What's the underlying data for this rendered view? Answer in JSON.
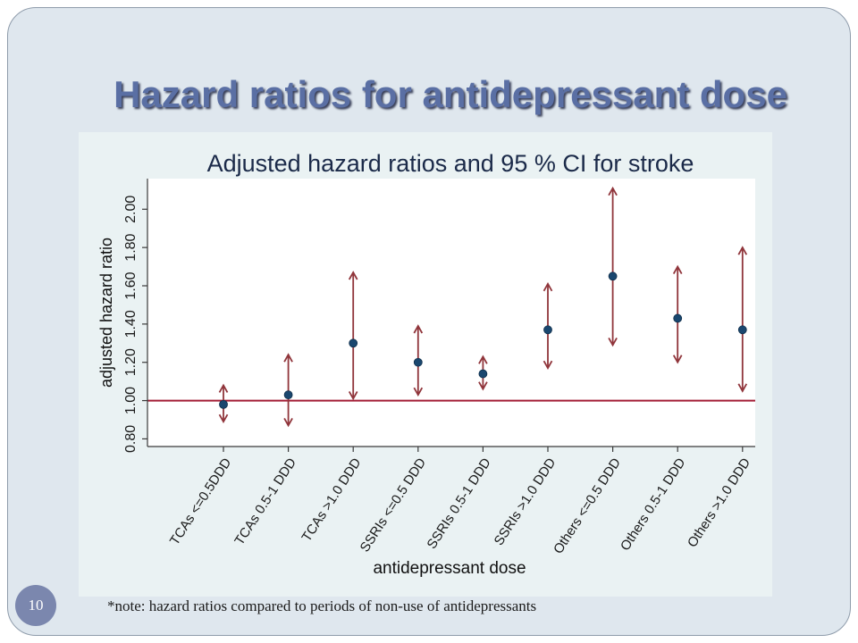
{
  "slide": {
    "title": "Hazard ratios for antidepressant dose",
    "footnote": "*note: hazard ratios compared to periods of non-use of antidepressants",
    "page_number": "10"
  },
  "colors": {
    "slide_background": "#dfe7ee",
    "title": "#5a6fa4",
    "graph_region": "#eaf2f3",
    "plot_region": "#ffffff",
    "chart_title": "#1b2a49",
    "marker": "#1a476f",
    "ci_arrow": "#90353b",
    "reference_line": "#a31d35",
    "axis": "#3a3a3a",
    "page_badge": "#7b87ae"
  },
  "chart_data": {
    "type": "scatter",
    "title": "Adjusted hazard ratios and 95 % CI for stroke",
    "xlabel": "antidepressant dose",
    "ylabel": "adjusted hazard ratio",
    "categories": [
      "TCAs <=0.5DDD",
      "TCAs 0.5-1 DDD",
      "TCAs >1.0 DDD",
      "SSRIs <=0.5 DDD",
      "SSRIs 0.5-1 DDD",
      "SSRIs >1.0 DDD",
      "Others <=0.5 DDD",
      "Others 0.5-1 DDD",
      "Others >1.0 DDD"
    ],
    "series": [
      {
        "values": [
          0.98,
          1.03,
          1.3,
          1.2,
          1.14,
          1.37,
          1.65,
          1.43,
          1.37
        ],
        "ci_lower": [
          0.89,
          0.87,
          1.01,
          1.03,
          1.06,
          1.17,
          1.29,
          1.2,
          1.05
        ],
        "ci_upper": [
          1.08,
          1.24,
          1.67,
          1.39,
          1.23,
          1.61,
          2.11,
          1.7,
          1.8
        ]
      }
    ],
    "y_ticks": [
      "0.80",
      "1.00",
      "1.20",
      "1.40",
      "1.60",
      "1.80",
      "2.00"
    ],
    "ylim": [
      0.76,
      2.16
    ],
    "reference_line": 1.0,
    "grid": false
  }
}
